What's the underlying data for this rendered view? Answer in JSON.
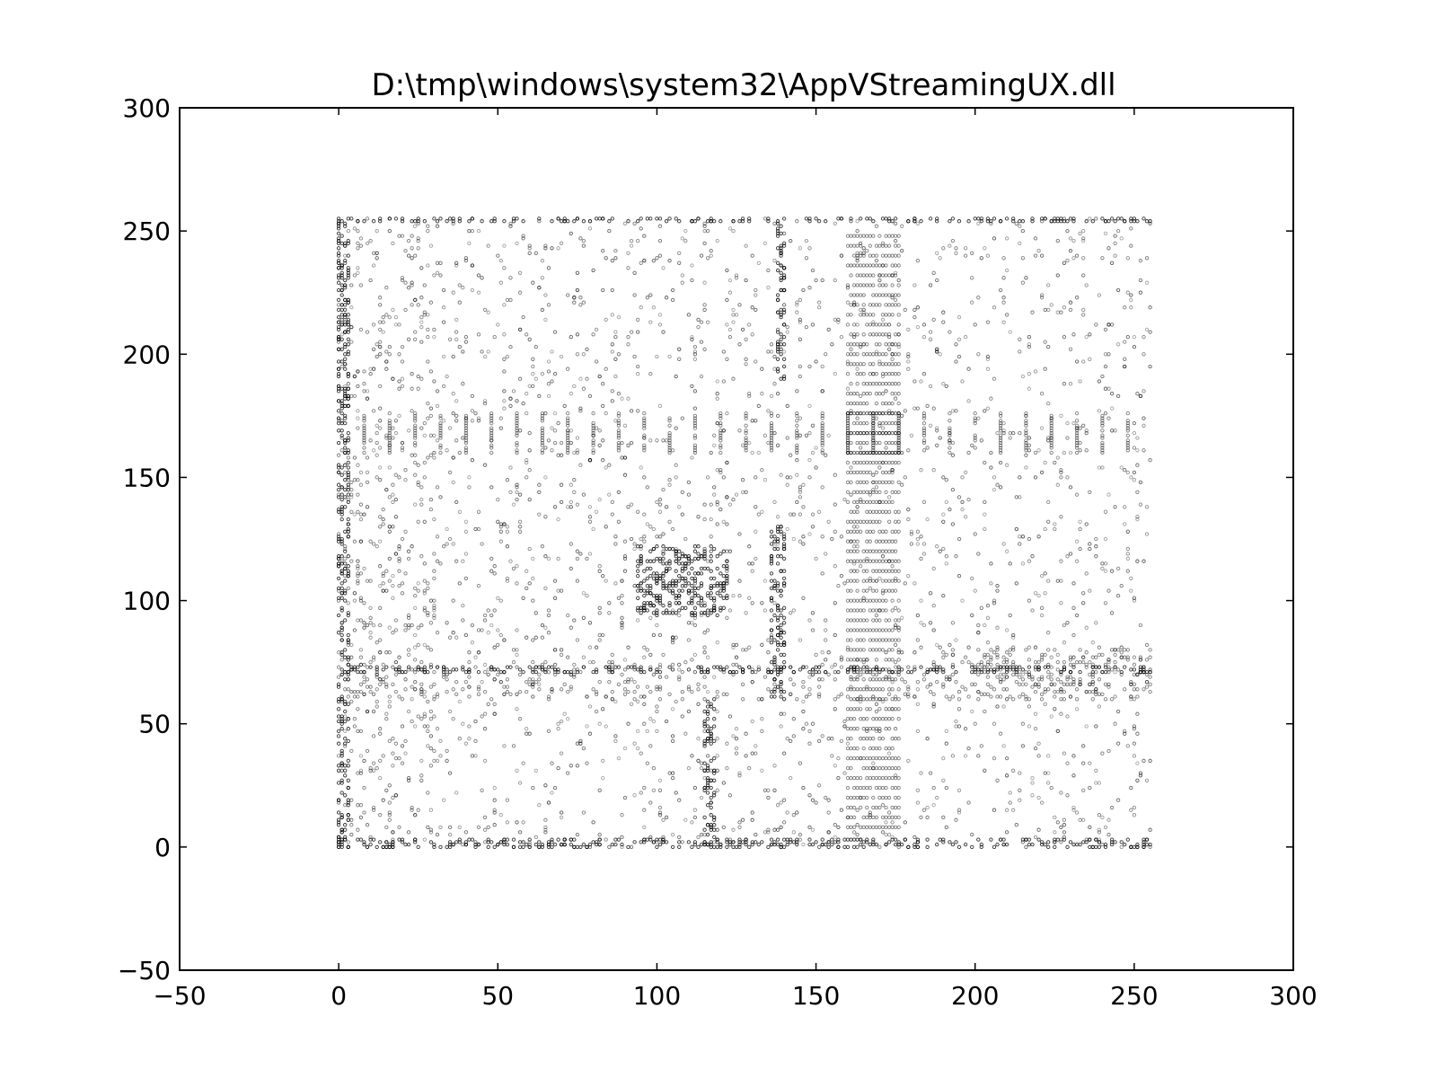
{
  "chart_data": {
    "type": "scatter",
    "title": "D:\\tmp\\windows\\system32\\AppVStreamingUX.dll",
    "xlabel": "",
    "ylabel": "",
    "xlim": [
      -50,
      300
    ],
    "ylim": [
      -50,
      300
    ],
    "x_ticks": [
      -50,
      0,
      50,
      100,
      150,
      200,
      250,
      300
    ],
    "y_ticks": [
      -50,
      0,
      50,
      100,
      150,
      200,
      250,
      300
    ],
    "x_tick_labels": [
      "−50",
      "0",
      "50",
      "100",
      "150",
      "200",
      "250",
      "300"
    ],
    "y_tick_labels": [
      "−50",
      "0",
      "50",
      "100",
      "150",
      "200",
      "250",
      "300"
    ],
    "grid": false,
    "marker_color": "#000000",
    "point_domain": {
      "x": [
        0,
        255
      ],
      "y": [
        0,
        255
      ]
    },
    "dense_regions": [
      {
        "name": "bottom-row",
        "x": [
          0,
          255
        ],
        "y": [
          0,
          3
        ]
      },
      {
        "name": "left-column",
        "x": [
          0,
          3
        ],
        "y": [
          0,
          255
        ]
      },
      {
        "name": "row-72",
        "x": [
          0,
          255
        ],
        "y": [
          71,
          73
        ]
      },
      {
        "name": "row-255",
        "x": [
          0,
          255
        ],
        "y": [
          254,
          255
        ]
      },
      {
        "name": "block-100-120",
        "x": [
          94,
          122
        ],
        "y": [
          94,
          122
        ]
      },
      {
        "name": "column-137",
        "x": [
          136,
          140
        ],
        "y": [
          60,
          130
        ]
      },
      {
        "name": "column-139",
        "x": [
          138,
          140
        ],
        "y": [
          190,
          255
        ]
      },
      {
        "name": "column-116",
        "x": [
          115,
          118
        ],
        "y": [
          0,
          60
        ]
      }
    ],
    "periodic_vertical_bars": {
      "y": [
        160,
        176
      ],
      "x_start": 8,
      "x_end": 248,
      "step": 8
    },
    "horizontal_stripe_band": {
      "x": [
        160,
        176
      ],
      "y": [
        0,
        250
      ],
      "step": 4
    }
  }
}
